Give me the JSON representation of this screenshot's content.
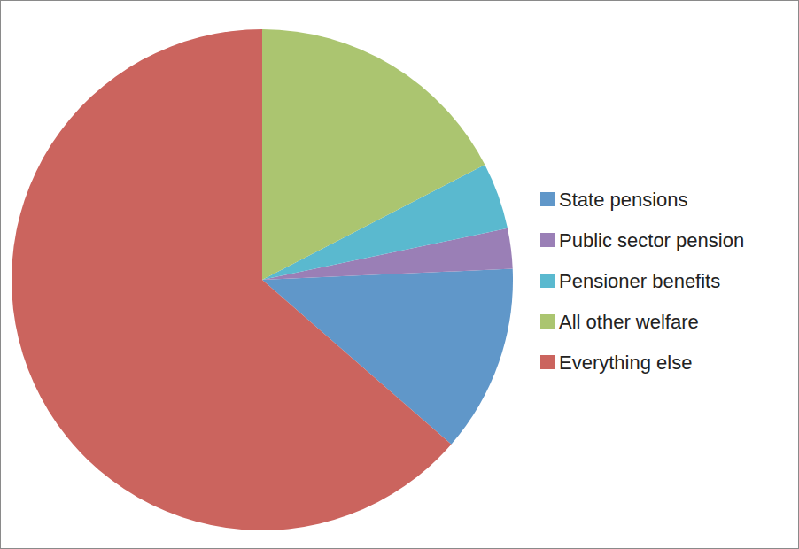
{
  "chart_data": {
    "type": "pie",
    "categories": [
      "State pensions",
      "Public sector pension",
      "Pensioner benefits",
      "All other welfare",
      "Everything else"
    ],
    "values": [
      12.1,
      2.6,
      4.3,
      17.4,
      63.6
    ],
    "colors": [
      "#6097c9",
      "#9a7fb6",
      "#5ab9cf",
      "#abc570",
      "#cb645e"
    ],
    "legend": "right"
  }
}
